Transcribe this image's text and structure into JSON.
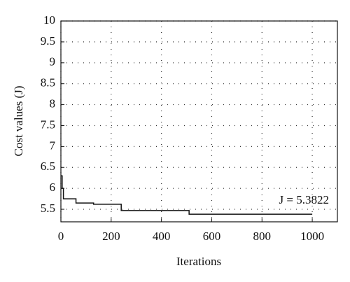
{
  "chart_data": {
    "type": "line",
    "step": true,
    "x_label": "Iterations",
    "y_label": "Cost values (J)",
    "annotation": "J = 5.3822",
    "x": [
      0,
      5,
      10,
      60,
      130,
      240,
      510,
      1000
    ],
    "series": [
      {
        "color": "#111111",
        "values": [
          6.3,
          6.0,
          5.75,
          5.65,
          5.62,
          5.47,
          5.3822,
          5.3822
        ]
      }
    ],
    "xlim": [
      0,
      1100
    ],
    "ylim": [
      5.2,
      10
    ],
    "xticks": [
      0,
      200,
      400,
      600,
      800,
      1000
    ],
    "yticks": [
      5.5,
      6,
      6.5,
      7,
      7.5,
      8,
      8.5,
      9,
      9.5,
      10
    ],
    "grid": true
  }
}
